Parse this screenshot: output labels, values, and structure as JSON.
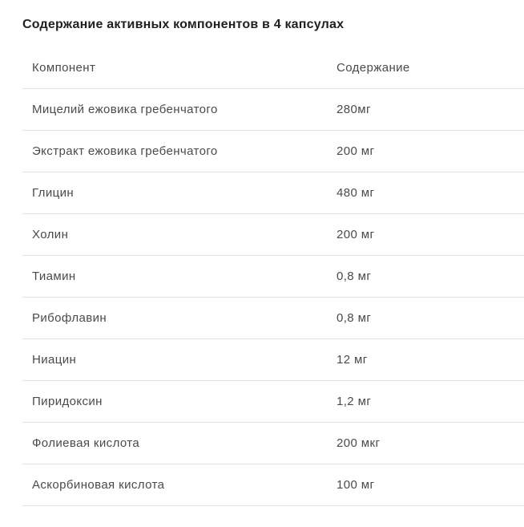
{
  "page": {
    "title": "Содержание активных компонентов в 4 капсулах"
  },
  "table": {
    "columns": [
      "Компонент",
      "Содержание"
    ],
    "rows": [
      {
        "component": "Мицелий ежовика гребенчатого",
        "amount": "280мг"
      },
      {
        "component": "Экстракт ежовика гребенчатого",
        "amount": "200 мг"
      },
      {
        "component": "Глицин",
        "amount": "480 мг"
      },
      {
        "component": "Холин",
        "amount": "200 мг"
      },
      {
        "component": "Тиамин",
        "amount": "0,8 мг"
      },
      {
        "component": "Рибофлавин",
        "amount": "0,8 мг"
      },
      {
        "component": "Ниацин",
        "amount": "12 мг"
      },
      {
        "component": "Пиридоксин",
        "amount": "1,2 мг"
      },
      {
        "component": "Фолиевая кислота",
        "amount": "200 мкг"
      },
      {
        "component": "Аскорбиновая кислота",
        "amount": "100 мг"
      }
    ]
  },
  "colors": {
    "title_text": "#1f1f1f",
    "body_text": "#4a4a4a",
    "divider": "#e3e3e3",
    "background": "#ffffff"
  }
}
